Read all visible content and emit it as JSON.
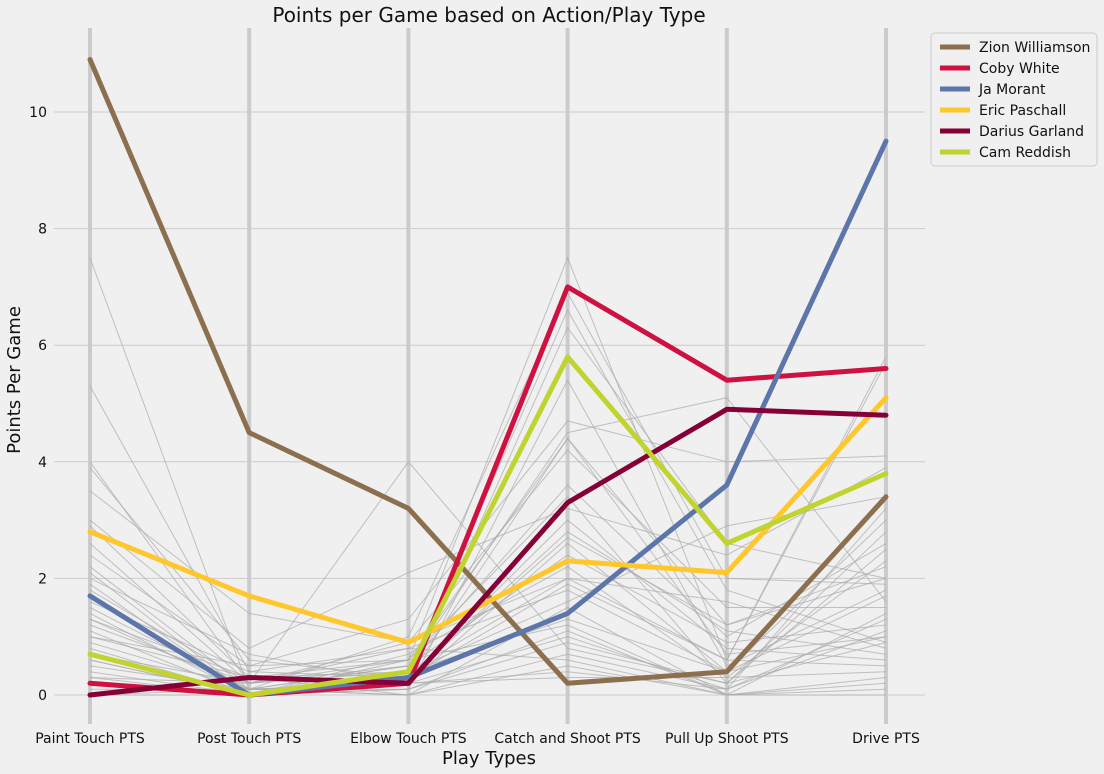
{
  "chart_data": {
    "type": "line",
    "title": "Points per Game based on Action/Play Type",
    "xlabel": "Play Types",
    "ylabel": "Points Per Game",
    "categories": [
      "Paint Touch PTS",
      "Post Touch PTS",
      "Elbow Touch PTS",
      "Catch and Shoot PTS",
      "Pull Up Shoot PTS",
      "Drive PTS"
    ],
    "yticks": [
      0,
      2,
      4,
      6,
      8,
      10
    ],
    "ylim": [
      -0.5,
      11.3
    ],
    "grid": true,
    "legend_position": "outside-top-right",
    "background_color": "#f0f0f0",
    "grid_color": "#cbcbcb",
    "background_series_color": "#aaaaaa",
    "highlight_series": [
      {
        "name": "Zion Williamson",
        "color": "#8b6f4e",
        "values": [
          10.9,
          4.5,
          3.2,
          0.2,
          0.4,
          3.4
        ]
      },
      {
        "name": "Coby White",
        "color": "#ce1141",
        "values": [
          0.2,
          0.0,
          0.2,
          7.0,
          5.4,
          5.6
        ]
      },
      {
        "name": "Ja Morant",
        "color": "#5d76a9",
        "values": [
          1.7,
          0.0,
          0.3,
          1.4,
          3.6,
          9.5
        ]
      },
      {
        "name": "Eric Paschall",
        "color": "#ffc72c",
        "values": [
          2.8,
          1.7,
          0.9,
          2.3,
          2.1,
          5.1
        ]
      },
      {
        "name": "Darius Garland",
        "color": "#860038",
        "values": [
          0.0,
          0.3,
          0.2,
          3.3,
          4.9,
          4.8
        ]
      },
      {
        "name": "Cam Reddish",
        "color": "#c1d32f",
        "values": [
          0.7,
          0.0,
          0.4,
          5.8,
          2.6,
          3.8
        ]
      }
    ],
    "background_series": [
      {
        "values": [
          7.5,
          0.1,
          0.5,
          2.4,
          0.9,
          1.2
        ]
      },
      {
        "values": [
          5.3,
          0.4,
          0.8,
          1.8,
          0.4,
          3.0
        ]
      },
      {
        "values": [
          4.0,
          0.2,
          4.0,
          0.8,
          0.2,
          2.5
        ]
      },
      {
        "values": [
          3.9,
          0.6,
          0.3,
          4.4,
          1.2,
          2.0
        ]
      },
      {
        "values": [
          3.5,
          1.4,
          0.9,
          2.0,
          0.6,
          5.7
        ]
      },
      {
        "values": [
          3.0,
          0.8,
          2.1,
          3.2,
          2.4,
          3.9
        ]
      },
      {
        "values": [
          2.9,
          0.3,
          0.6,
          7.5,
          0.6,
          5.8
        ]
      },
      {
        "values": [
          2.6,
          0.2,
          0.4,
          6.6,
          1.8,
          0.9
        ]
      },
      {
        "values": [
          2.4,
          0.5,
          1.3,
          4.7,
          4.0,
          4.1
        ]
      },
      {
        "values": [
          2.2,
          0.1,
          0.5,
          4.5,
          5.1,
          1.6
        ]
      },
      {
        "values": [
          2.0,
          0.7,
          0.2,
          6.3,
          2.6,
          2.0
        ]
      },
      {
        "values": [
          1.9,
          0.0,
          0.6,
          3.4,
          0.2,
          2.8
        ]
      },
      {
        "values": [
          1.8,
          0.2,
          0.8,
          0.6,
          0.0,
          1.4
        ]
      },
      {
        "values": [
          1.6,
          0.4,
          0.3,
          2.8,
          1.1,
          0.7
        ]
      },
      {
        "values": [
          1.5,
          0.1,
          0.1,
          5.4,
          0.5,
          1.8
        ]
      },
      {
        "values": [
          1.4,
          0.0,
          0.7,
          2.2,
          0.3,
          2.3
        ]
      },
      {
        "values": [
          1.3,
          0.3,
          0.4,
          1.6,
          2.9,
          3.4
        ]
      },
      {
        "values": [
          1.3,
          0.1,
          0.2,
          0.4,
          0.1,
          1.1
        ]
      },
      {
        "values": [
          1.2,
          0.2,
          0.9,
          4.2,
          1.5,
          1.5
        ]
      },
      {
        "values": [
          1.1,
          0.0,
          0.3,
          3.0,
          0.8,
          0.6
        ]
      },
      {
        "values": [
          1.0,
          0.5,
          0.6,
          1.2,
          0.0,
          0.3
        ]
      },
      {
        "values": [
          0.9,
          0.1,
          0.2,
          2.6,
          0.4,
          1.7
        ]
      },
      {
        "values": [
          0.8,
          0.0,
          0.1,
          0.9,
          0.2,
          0.9
        ]
      },
      {
        "values": [
          0.7,
          0.2,
          0.5,
          3.6,
          1.0,
          2.6
        ]
      },
      {
        "values": [
          0.6,
          0.0,
          0.3,
          1.9,
          0.6,
          0.5
        ]
      },
      {
        "values": [
          0.5,
          0.1,
          0.0,
          0.7,
          0.1,
          1.3
        ]
      },
      {
        "values": [
          0.4,
          0.0,
          0.4,
          2.0,
          1.6,
          0.8
        ]
      },
      {
        "values": [
          0.3,
          0.0,
          0.1,
          1.1,
          0.0,
          0.2
        ]
      },
      {
        "values": [
          0.3,
          0.2,
          0.6,
          4.4,
          0.7,
          1.0
        ]
      },
      {
        "values": [
          0.2,
          0.0,
          0.2,
          0.3,
          0.3,
          0.4
        ]
      },
      {
        "values": [
          0.1,
          0.1,
          0.0,
          1.5,
          0.0,
          0.1
        ]
      },
      {
        "values": [
          0.0,
          0.0,
          0.3,
          2.7,
          1.2,
          2.2
        ]
      },
      {
        "values": [
          0.0,
          0.1,
          1.0,
          6.9,
          2.0,
          1.9
        ]
      },
      {
        "values": [
          0.6,
          0.0,
          0.2,
          1.0,
          0.1,
          3.2
        ]
      },
      {
        "values": [
          1.0,
          0.3,
          0.0,
          0.5,
          0.0,
          0.0
        ]
      },
      {
        "values": [
          2.1,
          0.0,
          0.4,
          1.3,
          0.4,
          1.0
        ]
      }
    ]
  }
}
